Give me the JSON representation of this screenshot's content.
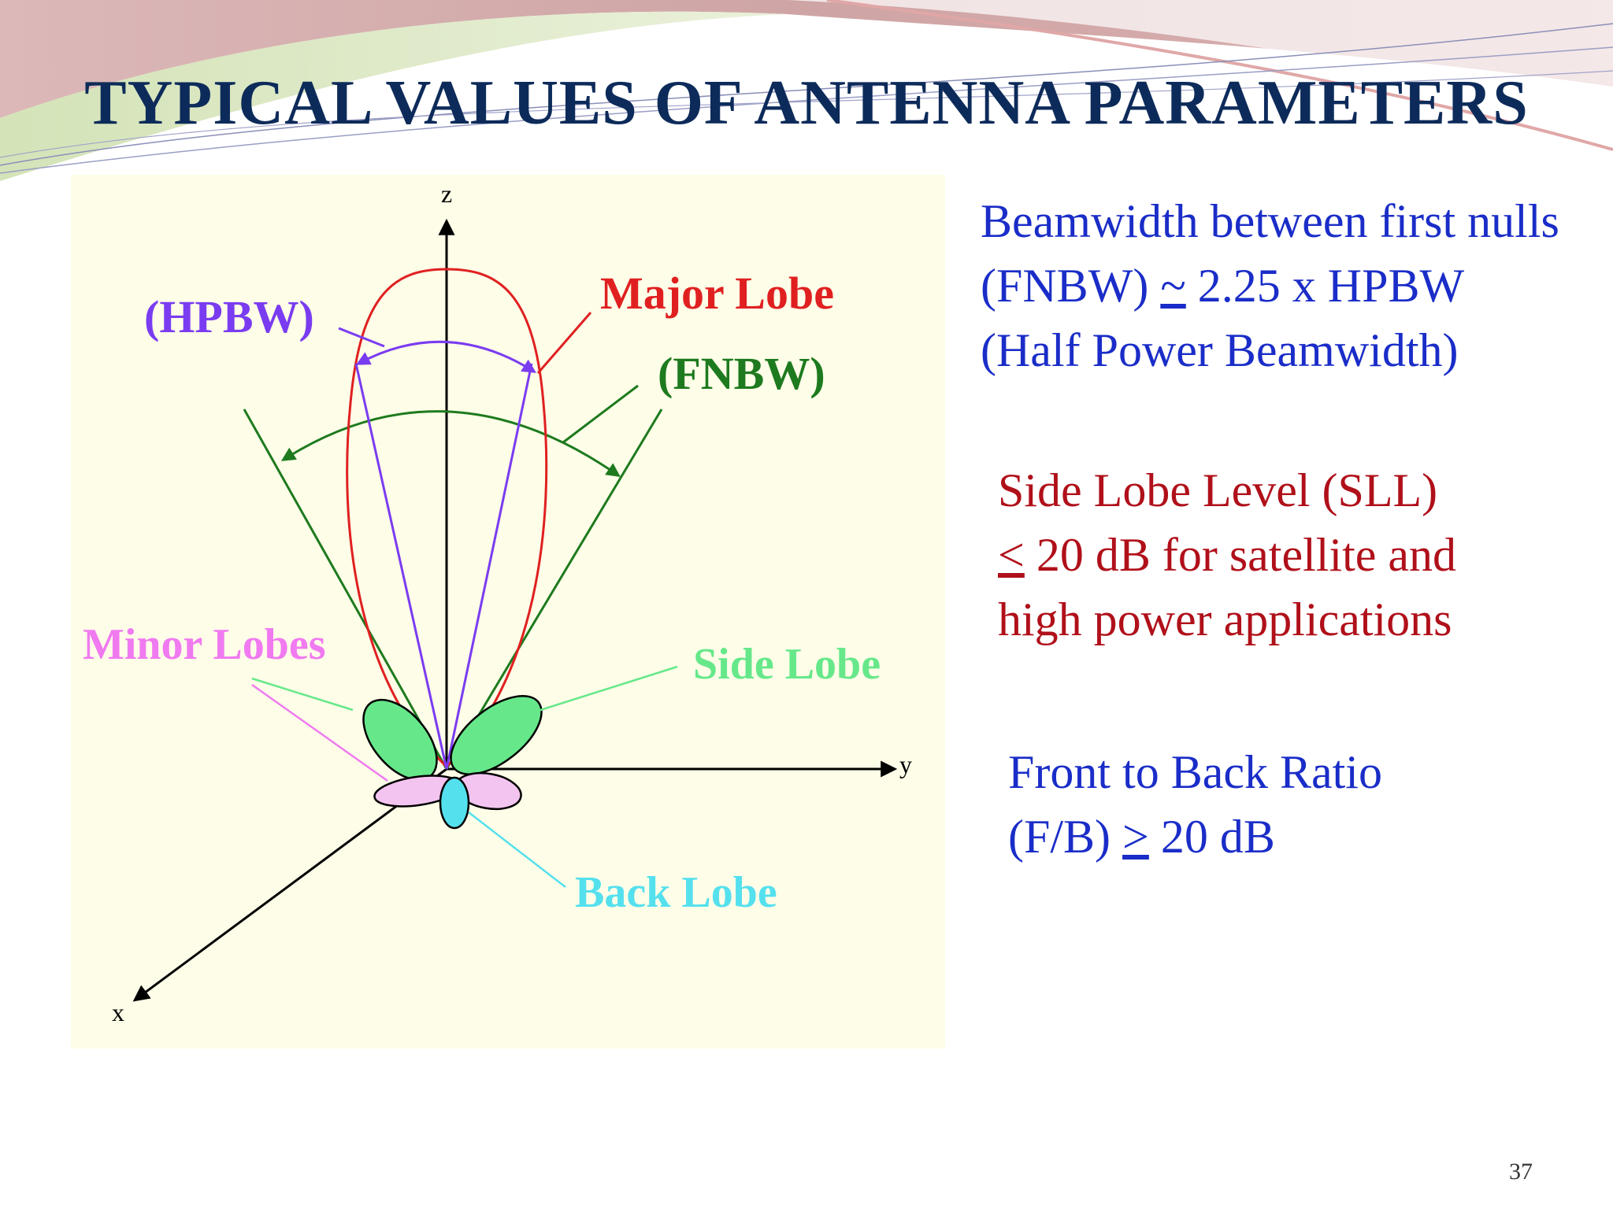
{
  "slide": {
    "title": "TYPICAL VALUES OF ANTENNA PARAMETERS",
    "page_number": "37"
  },
  "colors": {
    "title": "#0d2b5a",
    "panel_background": "#fdfde8",
    "major_lobe": "#e02020",
    "hpbw": "#7a3cf0",
    "fnbw": "#1e7a1e",
    "side_lobe": "#66e88a",
    "minor_lobe": "#f07af0",
    "back_lobe": "#55e0ee",
    "blue_text": "#1a2dc8",
    "red_text": "#b0101a"
  },
  "diagram": {
    "axis_labels": {
      "z": "z",
      "y": "y",
      "x": "x"
    },
    "labels": {
      "hpbw": "(HPBW)",
      "major_lobe": "Major Lobe",
      "fnbw": "(FNBW)",
      "minor_lobes": "Minor Lobes",
      "side_lobe": "Side Lobe",
      "back_lobe": "Back Lobe"
    }
  },
  "info": {
    "fnbw": {
      "line1": "Beamwidth between first nulls",
      "line2_prefix": "(FNBW) ",
      "line2_symbol": "~",
      "line2_suffix": " 2.25 x HPBW",
      "line3": "(Half Power Beamwidth)"
    },
    "sll": {
      "line1": "Side Lobe Level (SLL)",
      "line2_symbol": "<",
      "line2_suffix": " 20 dB for satellite and",
      "line3": "high power applications"
    },
    "fb": {
      "line1": "Front to Back Ratio",
      "line2_prefix": "(F/B) ",
      "line2_symbol": ">",
      "line2_suffix": " 20 dB"
    }
  }
}
